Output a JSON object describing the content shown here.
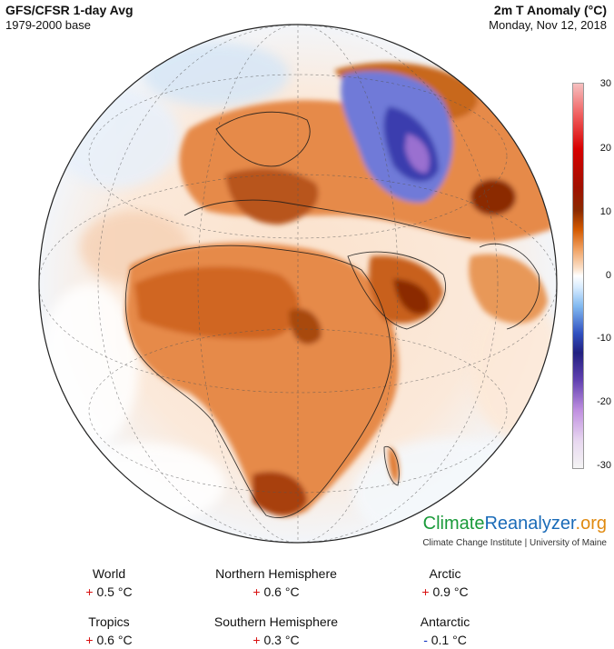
{
  "header": {
    "title_left": "GFS/CFSR 1-day Avg",
    "subtitle_left": "1979-2000 base",
    "title_right": "2m T Anomaly (°C)",
    "subtitle_right": "Monday, Nov 12, 2018"
  },
  "colorbar": {
    "ticks": [
      "30",
      "20",
      "10",
      "0",
      "-10",
      "-20",
      "-30"
    ]
  },
  "brand": {
    "part1": "Climate",
    "part2": "Reanalyzer",
    "part3": ".org",
    "subline": "Climate Change Institute | University of Maine"
  },
  "stats": [
    {
      "label": "World",
      "sign": "+",
      "value": "0.5 °C"
    },
    {
      "label": "Northern Hemisphere",
      "sign": "+",
      "value": "0.6 °C"
    },
    {
      "label": "Arctic",
      "sign": "+",
      "value": "0.9 °C"
    },
    {
      "label": "Tropics",
      "sign": "+",
      "value": "0.6 °C"
    },
    {
      "label": "Southern Hemisphere",
      "sign": "+",
      "value": "0.3 °C"
    },
    {
      "label": "Antarctic",
      "sign": "-",
      "value": "0.1 °C"
    }
  ],
  "colors": {
    "warm": "#d85a10",
    "hot": "#8b2a00",
    "cold": "#3050c0",
    "ocean_neutral": "#fbe6d4"
  }
}
